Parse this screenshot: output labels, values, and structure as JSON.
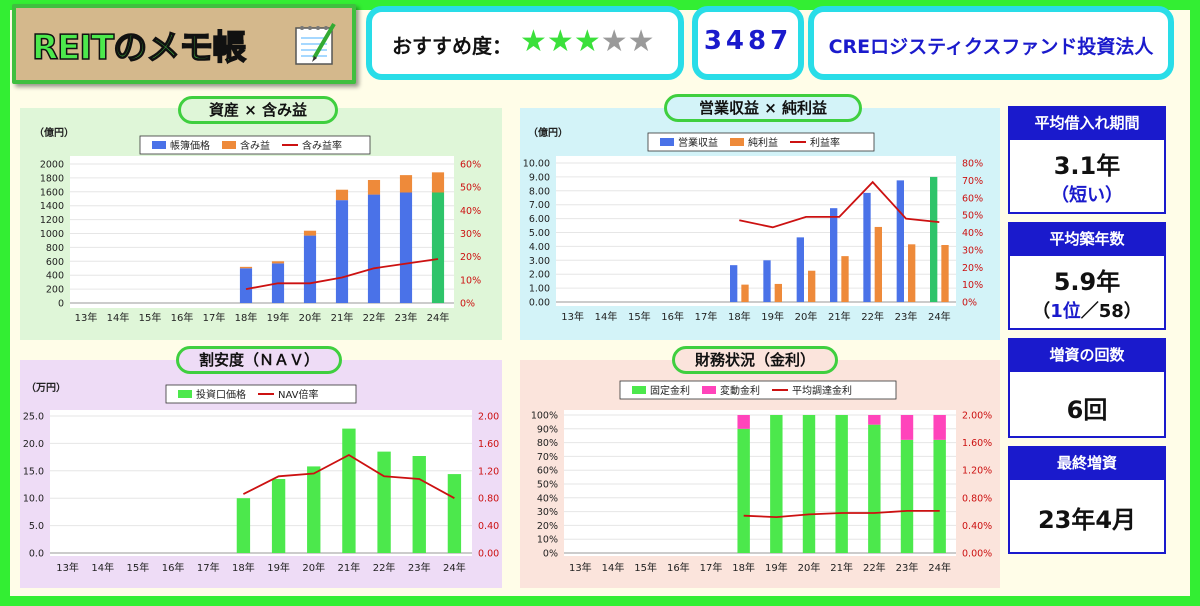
{
  "logo": {
    "text": "REITのメモ帳"
  },
  "rating": {
    "label": "おすすめ度：",
    "stars_filled": 3,
    "stars_total": 5
  },
  "reit": {
    "code": "3487",
    "name": "CREロジスティクスファンド投資法人"
  },
  "side": {
    "borrow_period": {
      "label": "平均借入れ期間",
      "value": "3.1年",
      "note": "（短い）"
    },
    "building_age": {
      "label": "平均築年数",
      "value": "5.9年",
      "rank": "1位",
      "rank_total": "58"
    },
    "capital_increase": {
      "label": "増資の回数",
      "value": "6回"
    },
    "last_increase": {
      "label": "最終増資",
      "value": "23年4月"
    }
  },
  "chart_data": [
    {
      "type": "bar",
      "title": "資産 × 含み益",
      "unit_label": "（億円）",
      "categories": [
        "13年",
        "14年",
        "15年",
        "16年",
        "17年",
        "18年",
        "19年",
        "20年",
        "21年",
        "22年",
        "23年",
        "24年"
      ],
      "stacked": true,
      "series": [
        {
          "name": "帳簿価格",
          "axis": "left",
          "color": "#4a72e8",
          "values": [
            0,
            0,
            0,
            0,
            0,
            500,
            570,
            970,
            1480,
            1560,
            1590,
            1590
          ]
        },
        {
          "name": "含み益",
          "axis": "left",
          "color": "#ee8a3a",
          "values": [
            0,
            0,
            0,
            0,
            0,
            20,
            30,
            70,
            150,
            210,
            250,
            290
          ]
        },
        {
          "name": "含み益率",
          "axis": "right",
          "type": "line",
          "color": "#cc1111",
          "values": [
            null,
            null,
            null,
            null,
            null,
            6,
            8.5,
            8.5,
            11,
            15,
            17,
            19
          ]
        }
      ],
      "ylim_left": [
        0,
        2000
      ],
      "yticks_left": [
        0,
        200,
        400,
        600,
        800,
        1000,
        1200,
        1400,
        1600,
        1800,
        2000
      ],
      "ylim_right": [
        0,
        60
      ],
      "yticks_right_labels": [
        "0%",
        "10%",
        "20%",
        "30%",
        "40%",
        "50%",
        "60%"
      ],
      "highlight_last": "#2ec46a",
      "legend": "top-center"
    },
    {
      "type": "bar",
      "title": "営業収益 × 純利益",
      "unit_label": "（億円）",
      "categories": [
        "13年",
        "14年",
        "15年",
        "16年",
        "17年",
        "18年",
        "19年",
        "20年",
        "21年",
        "22年",
        "23年",
        "24年"
      ],
      "series": [
        {
          "name": "営業収益",
          "axis": "left",
          "color": "#4a72e8",
          "values": [
            0,
            0,
            0,
            0,
            0,
            2.65,
            3.0,
            4.65,
            6.75,
            7.85,
            8.75,
            9.0
          ]
        },
        {
          "name": "純利益",
          "axis": "left",
          "color": "#ee8a3a",
          "values": [
            0,
            0,
            0,
            0,
            0,
            1.25,
            1.3,
            2.25,
            3.3,
            5.4,
            4.15,
            4.1
          ]
        },
        {
          "name": "利益率",
          "axis": "right",
          "type": "line",
          "color": "#cc1111",
          "values": [
            null,
            null,
            null,
            null,
            null,
            47,
            43,
            49,
            49,
            69,
            48,
            46
          ]
        }
      ],
      "ylim_left": [
        0,
        10
      ],
      "yticks_left_labels": [
        "0.00",
        "1.00",
        "2.00",
        "3.00",
        "4.00",
        "5.00",
        "6.00",
        "7.00",
        "8.00",
        "9.00",
        "10.00"
      ],
      "ylim_right": [
        0,
        80
      ],
      "yticks_right_labels": [
        "0%",
        "10%",
        "20%",
        "30%",
        "40%",
        "50%",
        "60%",
        "70%",
        "80%"
      ],
      "highlight_last": "#2ec46a",
      "legend": "top-center"
    },
    {
      "type": "bar",
      "title": "割安度（ＮＡＶ）",
      "unit_label": "（万円）",
      "categories": [
        "13年",
        "14年",
        "15年",
        "16年",
        "17年",
        "18年",
        "19年",
        "20年",
        "21年",
        "22年",
        "23年",
        "24年"
      ],
      "series": [
        {
          "name": "投資口価格",
          "axis": "left",
          "color": "#4ce84c",
          "values": [
            0,
            0,
            0,
            0,
            0,
            10.0,
            13.5,
            15.8,
            22.7,
            18.5,
            17.7,
            14.4
          ]
        },
        {
          "name": "NAV倍率",
          "axis": "right",
          "type": "line",
          "color": "#cc1111",
          "values": [
            null,
            null,
            null,
            null,
            null,
            0.86,
            1.12,
            1.16,
            1.43,
            1.12,
            1.08,
            0.8
          ]
        }
      ],
      "ylim_left": [
        0,
        25
      ],
      "yticks_left_labels": [
        "0.0",
        "5.0",
        "10.0",
        "15.0",
        "20.0",
        "25.0"
      ],
      "ylim_right": [
        0,
        2
      ],
      "yticks_right_labels": [
        "0.00",
        "0.40",
        "0.80",
        "1.20",
        "1.60",
        "2.00"
      ],
      "legend": "top-center"
    },
    {
      "type": "bar",
      "title": "財務状況（金利）",
      "categories": [
        "13年",
        "14年",
        "15年",
        "16年",
        "17年",
        "18年",
        "19年",
        "20年",
        "21年",
        "22年",
        "23年",
        "24年"
      ],
      "stacked": true,
      "series": [
        {
          "name": "固定金利",
          "axis": "left",
          "color": "#4ce84c",
          "values": [
            0,
            0,
            0,
            0,
            0,
            90,
            100,
            100,
            100,
            93,
            82,
            82
          ]
        },
        {
          "name": "変動金利",
          "axis": "left",
          "color": "#ff44bb",
          "values": [
            0,
            0,
            0,
            0,
            0,
            10,
            0,
            0,
            0,
            7,
            18,
            18
          ]
        },
        {
          "name": "平均調達金利",
          "axis": "right",
          "type": "line",
          "color": "#cc1111",
          "values": [
            null,
            null,
            null,
            null,
            null,
            0.54,
            0.52,
            0.56,
            0.58,
            0.58,
            0.61,
            0.61
          ]
        }
      ],
      "ylim_left": [
        0,
        100
      ],
      "yticks_left_labels": [
        "0%",
        "10%",
        "20%",
        "30%",
        "40%",
        "50%",
        "60%",
        "70%",
        "80%",
        "90%",
        "100%"
      ],
      "ylim_right": [
        0,
        2
      ],
      "yticks_right_labels": [
        "0.00%",
        "0.40%",
        "0.80%",
        "1.20%",
        "1.60%",
        "2.00%"
      ],
      "legend": "top-center"
    }
  ]
}
